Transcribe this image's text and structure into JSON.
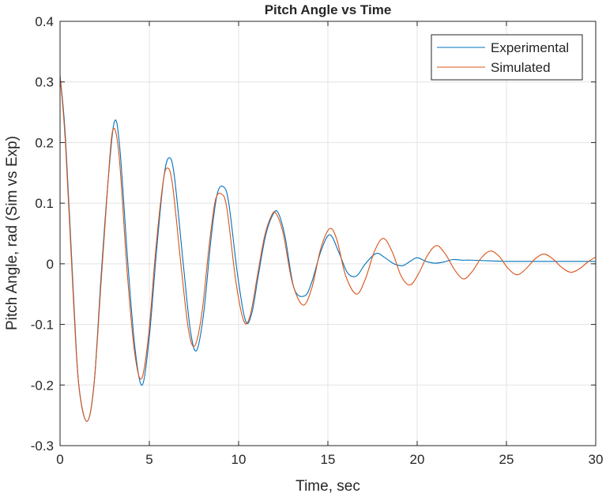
{
  "chart_data": {
    "type": "line",
    "title": "Pitch Angle vs Time",
    "xlabel": "Time, sec",
    "ylabel": "Pitch Angle, rad (Sim vs Exp)",
    "xlim": [
      0,
      30
    ],
    "ylim": [
      -0.3,
      0.4
    ],
    "xticks": [
      0,
      5,
      10,
      15,
      20,
      25,
      30
    ],
    "xtick_labels": [
      "0",
      "5",
      "10",
      "15",
      "20",
      "25",
      "30"
    ],
    "yticks": [
      -0.3,
      -0.2,
      -0.1,
      0,
      0.1,
      0.2,
      0.3,
      0.4
    ],
    "ytick_labels": [
      "-0.3",
      "-0.2",
      "-0.1",
      "0",
      "0.1",
      "0.2",
      "0.3",
      "0.4"
    ],
    "grid": true,
    "legend_position": "top-right",
    "series": [
      {
        "name": "Experimental",
        "color": "#0072BD",
        "x": [
          0,
          0.3,
          0.75,
          1.05,
          1.5,
          1.9,
          2.3,
          2.7,
          3.05,
          3.35,
          3.8,
          4.2,
          4.6,
          5.0,
          5.4,
          5.8,
          6.1,
          6.4,
          6.9,
          7.3,
          7.65,
          8.05,
          8.45,
          8.8,
          9.15,
          9.45,
          9.95,
          10.4,
          10.75,
          11.1,
          11.5,
          11.9,
          12.2,
          12.6,
          13.1,
          13.7,
          14.1,
          14.6,
          15.1,
          15.6,
          16.1,
          16.6,
          17.1,
          17.7,
          18.2,
          18.7,
          19.2,
          19.6,
          20.0,
          20.5,
          21.0,
          21.5,
          22.0,
          22.5,
          23.0,
          24.0,
          25.0,
          26.0,
          27.0,
          28.0,
          29.0,
          30.0
        ],
        "y": [
          0.31,
          0.21,
          -0.05,
          -0.2,
          -0.26,
          -0.2,
          -0.02,
          0.14,
          0.235,
          0.19,
          0.0,
          -0.14,
          -0.2,
          -0.12,
          0.02,
          0.14,
          0.175,
          0.145,
          0.0,
          -0.11,
          -0.143,
          -0.08,
          0.04,
          0.115,
          0.127,
          0.1,
          -0.02,
          -0.095,
          -0.08,
          -0.02,
          0.045,
          0.08,
          0.085,
          0.045,
          -0.04,
          -0.053,
          -0.03,
          0.02,
          0.048,
          0.02,
          -0.015,
          -0.02,
          0.0,
          0.017,
          0.01,
          0.0,
          -0.003,
          0.004,
          0.01,
          0.004,
          0.001,
          0.003,
          0.007,
          0.006,
          0.006,
          0.005,
          0.004,
          0.004,
          0.004,
          0.004,
          0.004,
          0.004
        ]
      },
      {
        "name": "Simulated",
        "color": "#D95319",
        "x": [
          0,
          0.3,
          0.75,
          1.05,
          1.5,
          1.9,
          2.3,
          2.65,
          2.95,
          3.3,
          3.75,
          4.15,
          4.55,
          4.95,
          5.35,
          5.75,
          6.0,
          6.3,
          6.8,
          7.2,
          7.55,
          7.95,
          8.35,
          8.7,
          9.05,
          9.35,
          9.85,
          10.3,
          10.65,
          11.05,
          11.45,
          11.85,
          12.1,
          12.5,
          13.0,
          13.6,
          14.1,
          14.6,
          15.1,
          15.5,
          16.0,
          16.6,
          17.1,
          17.6,
          18.1,
          18.6,
          19.1,
          19.6,
          20.1,
          20.6,
          21.1,
          21.6,
          22.1,
          22.6,
          23.1,
          23.6,
          24.1,
          24.6,
          25.1,
          25.6,
          26.1,
          26.6,
          27.1,
          27.6,
          28.1,
          28.6,
          29.1,
          29.6,
          30.0
        ],
        "y": [
          0.31,
          0.2,
          -0.06,
          -0.2,
          -0.26,
          -0.2,
          -0.03,
          0.12,
          0.22,
          0.18,
          -0.01,
          -0.14,
          -0.19,
          -0.12,
          0.02,
          0.13,
          0.158,
          0.13,
          -0.01,
          -0.11,
          -0.135,
          -0.08,
          0.03,
          0.105,
          0.115,
          0.09,
          -0.03,
          -0.095,
          -0.085,
          -0.02,
          0.045,
          0.08,
          0.083,
          0.05,
          -0.03,
          -0.068,
          -0.04,
          0.025,
          0.058,
          0.04,
          -0.02,
          -0.05,
          -0.025,
          0.02,
          0.042,
          0.02,
          -0.02,
          -0.035,
          -0.015,
          0.015,
          0.03,
          0.015,
          -0.01,
          -0.025,
          -0.012,
          0.01,
          0.021,
          0.012,
          -0.008,
          -0.018,
          -0.008,
          0.008,
          0.016,
          0.008,
          -0.006,
          -0.014,
          -0.008,
          0.004,
          0.011
        ]
      }
    ]
  }
}
